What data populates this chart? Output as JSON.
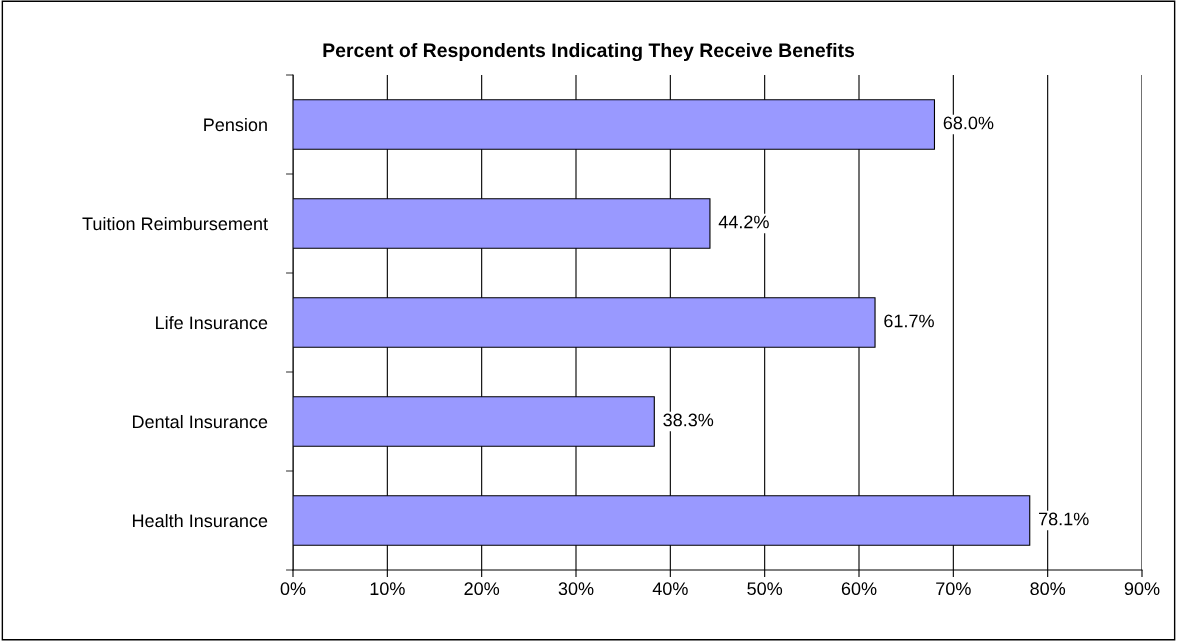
{
  "chart_data": {
    "type": "bar",
    "orientation": "horizontal",
    "title": "Percent of Respondents Indicating They Receive Benefits",
    "categories": [
      "Pension",
      "Tuition Reimbursement",
      "Life Insurance",
      "Dental Insurance",
      "Health Insurance"
    ],
    "values": [
      68.0,
      44.2,
      61.7,
      38.3,
      78.1
    ],
    "value_labels": [
      "68.0%",
      "44.2%",
      "61.7%",
      "38.3%",
      "78.1%"
    ],
    "color": "#9999ff",
    "xlim": [
      0,
      90
    ],
    "xticks": [
      {
        "value": 0,
        "label": "0%"
      },
      {
        "value": 10,
        "label": "10%"
      },
      {
        "value": 20,
        "label": "20%"
      },
      {
        "value": 30,
        "label": "30%"
      },
      {
        "value": 40,
        "label": "40%"
      },
      {
        "value": 50,
        "label": "50%"
      },
      {
        "value": 60,
        "label": "60%"
      },
      {
        "value": 70,
        "label": "70%"
      },
      {
        "value": 80,
        "label": "80%"
      },
      {
        "value": 90,
        "label": "90%"
      }
    ],
    "grid": "x",
    "legend": false
  }
}
